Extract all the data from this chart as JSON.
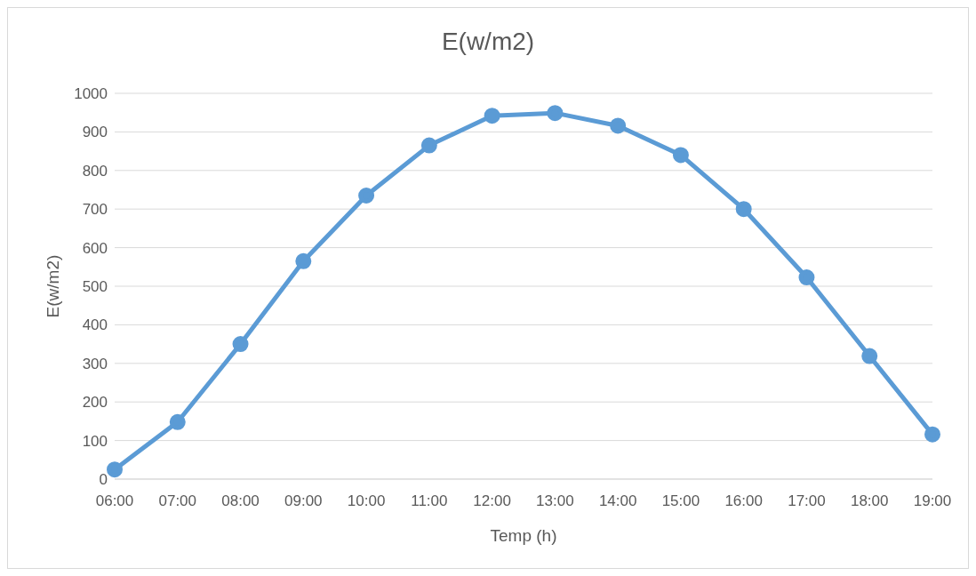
{
  "chart_data": {
    "type": "line",
    "title": "E(w/m2)",
    "xlabel": "Temp (h)",
    "ylabel": "E(w/m2)",
    "categories": [
      "06:00",
      "07:00",
      "08:00",
      "09:00",
      "10:00",
      "11:00",
      "12:00",
      "13:00",
      "14:00",
      "15:00",
      "16:00",
      "17:00",
      "18:00",
      "19:00"
    ],
    "series": [
      {
        "color": "#5b9bd5",
        "values": [
          25,
          148,
          350,
          565,
          735,
          865,
          942,
          949,
          916,
          840,
          700,
          523,
          319,
          116
        ]
      }
    ],
    "ylim": [
      0,
      1000
    ],
    "yticks": [
      0,
      100,
      200,
      300,
      400,
      500,
      600,
      700,
      800,
      900,
      1000
    ],
    "grid": "y",
    "legend": false,
    "marker": "circle",
    "line_style": "solid"
  }
}
